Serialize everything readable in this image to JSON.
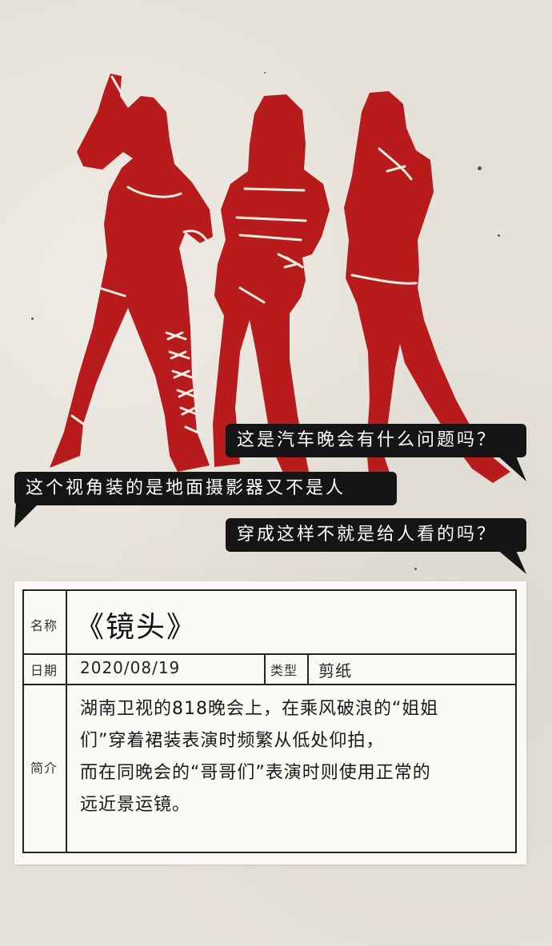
{
  "colors": {
    "silhouette": "#b81b1b",
    "bubble_bg": "#151515",
    "bubble_text": "#ffffff",
    "paper": "#e6e1d8"
  },
  "bubbles": [
    {
      "text": "这是汽车晚会有什么问题吗？"
    },
    {
      "text": "这个视角装的是地面摄影器又不是人"
    },
    {
      "text": "穿成这样不就是给人看的吗？"
    }
  ],
  "card": {
    "name_label": "名称",
    "name_value": "《镜头》",
    "date_label": "日期",
    "date_value": "2020/08/19",
    "type_label": "类型",
    "type_value": "剪纸",
    "intro_label": "简介",
    "intro_lines": [
      "湖南卫视的818晚会上，在乘风破浪的“姐姐",
      "们”穿着裙装表演时频繁从低处仰拍，",
      "而在同晚会的“哥哥们”表演时则使用正常的",
      "远近景运镜。"
    ]
  }
}
